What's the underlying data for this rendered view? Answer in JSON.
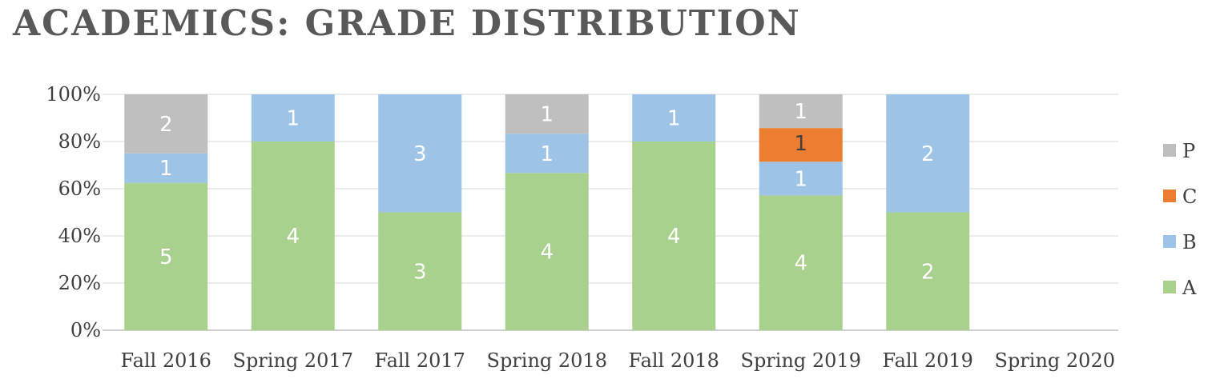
{
  "title": "ACADEMICS: GRADE DISTRIBUTION",
  "chart_data": {
    "type": "bar",
    "stacked": "percent",
    "categories": [
      "Fall 2016",
      "Spring 2017",
      "Fall 2017",
      "Spring 2018",
      "Fall 2018",
      "Spring 2019",
      "Fall 2019",
      "Spring 2020"
    ],
    "series": [
      {
        "name": "A",
        "color": "#a9d18e",
        "values": [
          5,
          4,
          3,
          4,
          4,
          4,
          2,
          0
        ]
      },
      {
        "name": "B",
        "color": "#9dc3e6",
        "values": [
          1,
          1,
          3,
          1,
          1,
          1,
          2,
          0
        ]
      },
      {
        "name": "C",
        "color": "#ed7d31",
        "values": [
          0,
          0,
          0,
          0,
          0,
          1,
          0,
          0
        ]
      },
      {
        "name": "P",
        "color": "#bfbfbf",
        "values": [
          2,
          0,
          0,
          1,
          0,
          1,
          0,
          0
        ]
      }
    ],
    "yticks": [
      "0%",
      "20%",
      "40%",
      "60%",
      "80%",
      "100%"
    ],
    "ylim": [
      0,
      100
    ],
    "grid": true,
    "legend_position": "right"
  }
}
